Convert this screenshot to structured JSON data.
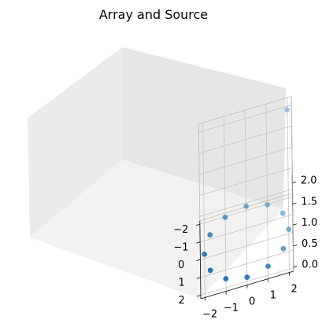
{
  "chart_data": {
    "type": "scatter",
    "projection": "3d",
    "title": "Array and Source",
    "xlabel": "",
    "ylabel": "",
    "zlabel": "",
    "xlim": [
      -2.2,
      2.2
    ],
    "ylim": [
      -2.2,
      2.2
    ],
    "zlim": [
      -0.1,
      2.2
    ],
    "x_ticks": [
      -2,
      -1,
      0,
      1,
      2
    ],
    "y_ticks": [
      -2,
      -1,
      0,
      1,
      2
    ],
    "z_ticks": [
      0.0,
      0.5,
      1.0,
      1.5,
      2.0
    ],
    "x_tick_labels": [
      "−2",
      "−1",
      "0",
      "1",
      "2"
    ],
    "y_tick_labels": [
      "−2",
      "−1",
      "0",
      "1",
      "2"
    ],
    "z_tick_labels": [
      "0.0",
      "0.5",
      "1.0",
      "1.5",
      "2.0"
    ],
    "grid": true,
    "marker_color": "#1f77b4",
    "points": [
      {
        "x": 2.0,
        "y": 0.0,
        "z": 0.0
      },
      {
        "x": 1.73,
        "y": 1.0,
        "z": 0.0
      },
      {
        "x": 1.0,
        "y": 1.73,
        "z": 0.0
      },
      {
        "x": 0.0,
        "y": 2.0,
        "z": 0.0
      },
      {
        "x": -1.0,
        "y": 1.73,
        "z": 0.0
      },
      {
        "x": -1.73,
        "y": 1.0,
        "z": 0.0
      },
      {
        "x": -2.0,
        "y": 0.0,
        "z": 0.0
      },
      {
        "x": -1.73,
        "y": -1.0,
        "z": 0.0
      },
      {
        "x": -1.0,
        "y": -1.73,
        "z": 0.0
      },
      {
        "x": 0.0,
        "y": -2.0,
        "z": 0.0
      },
      {
        "x": 1.0,
        "y": -1.73,
        "z": 0.0
      },
      {
        "x": 1.73,
        "y": -1.0,
        "z": 0.0
      },
      {
        "x": -2.0,
        "y": 2.0,
        "z": 2.0
      }
    ]
  }
}
